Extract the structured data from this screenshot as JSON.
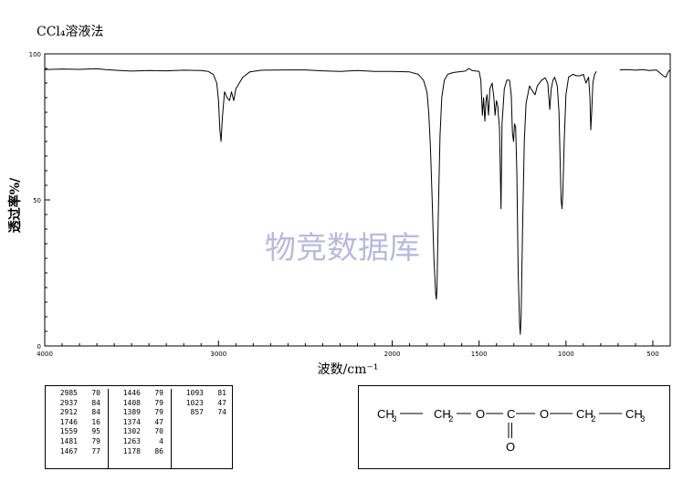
{
  "title": "CCl₄溶液法",
  "chart_data": {
    "type": "line",
    "xlabel": "波数/cm⁻¹",
    "ylabel": "透过率%/",
    "xlim": [
      4000,
      400
    ],
    "ylim": [
      0,
      100
    ],
    "x_tick_labels": [
      4000,
      3000,
      2000,
      1500,
      1000,
      500
    ],
    "y_tick_labels": [
      0,
      50,
      100
    ],
    "grid": false,
    "watermark": "物竞数据库",
    "series": [
      {
        "points": [
          [
            4000,
            94.6
          ],
          [
            3900,
            94.8
          ],
          [
            3800,
            94.7
          ],
          [
            3700,
            94.9
          ],
          [
            3650,
            94.6
          ],
          [
            3600,
            94.4
          ],
          [
            3500,
            94.1
          ],
          [
            3400,
            94.3
          ],
          [
            3300,
            94.2
          ],
          [
            3200,
            94.4
          ],
          [
            3100,
            94.3
          ],
          [
            3060,
            94.0
          ],
          [
            3030,
            93.0
          ],
          [
            3010,
            90.0
          ],
          [
            3000,
            84.0
          ],
          [
            2992,
            74.0
          ],
          [
            2985,
            70.0
          ],
          [
            2978,
            78.0
          ],
          [
            2965,
            87.0
          ],
          [
            2950,
            85.0
          ],
          [
            2937,
            84.0
          ],
          [
            2925,
            87.0
          ],
          [
            2912,
            84.0
          ],
          [
            2900,
            88.0
          ],
          [
            2880,
            90.0
          ],
          [
            2860,
            92.0
          ],
          [
            2820,
            93.8
          ],
          [
            2750,
            94.4
          ],
          [
            2600,
            94.5
          ],
          [
            2500,
            94.5
          ],
          [
            2400,
            94.2
          ],
          [
            2300,
            94.0
          ],
          [
            2200,
            94.3
          ],
          [
            2100,
            94.0
          ],
          [
            2000,
            94.0
          ],
          [
            1900,
            93.8
          ],
          [
            1850,
            93.0
          ],
          [
            1820,
            91.0
          ],
          [
            1800,
            87.0
          ],
          [
            1790,
            80.0
          ],
          [
            1780,
            68.0
          ],
          [
            1770,
            50.0
          ],
          [
            1760,
            30.0
          ],
          [
            1750,
            18.0
          ],
          [
            1746,
            16.0
          ],
          [
            1742,
            20.0
          ],
          [
            1735,
            45.0
          ],
          [
            1725,
            72.0
          ],
          [
            1715,
            85.0
          ],
          [
            1700,
            91.0
          ],
          [
            1680,
            93.0
          ],
          [
            1650,
            93.6
          ],
          [
            1600,
            94.0
          ],
          [
            1580,
            94.1
          ],
          [
            1559,
            95.0
          ],
          [
            1540,
            94.3
          ],
          [
            1500,
            94.0
          ],
          [
            1490,
            91.0
          ],
          [
            1481,
            79.0
          ],
          [
            1474,
            85.0
          ],
          [
            1467,
            77.0
          ],
          [
            1460,
            84.0
          ],
          [
            1455,
            86.0
          ],
          [
            1446,
            79.0
          ],
          [
            1438,
            88.0
          ],
          [
            1425,
            90.0
          ],
          [
            1415,
            85.0
          ],
          [
            1408,
            79.0
          ],
          [
            1400,
            84.0
          ],
          [
            1392,
            82.0
          ],
          [
            1389,
            79.0
          ],
          [
            1383,
            75.0
          ],
          [
            1374,
            47.0
          ],
          [
            1368,
            76.0
          ],
          [
            1355,
            88.0
          ],
          [
            1340,
            91.0
          ],
          [
            1325,
            91.0
          ],
          [
            1315,
            86.0
          ],
          [
            1308,
            73.0
          ],
          [
            1302,
            70.0
          ],
          [
            1296,
            76.0
          ],
          [
            1290,
            75.0
          ],
          [
            1283,
            60.0
          ],
          [
            1275,
            25.0
          ],
          [
            1267,
            8.0
          ],
          [
            1263,
            4.0
          ],
          [
            1258,
            10.0
          ],
          [
            1250,
            40.0
          ],
          [
            1240,
            70.0
          ],
          [
            1230,
            83.0
          ],
          [
            1210,
            89.0
          ],
          [
            1190,
            87.0
          ],
          [
            1178,
            86.0
          ],
          [
            1165,
            89.0
          ],
          [
            1140,
            91.0
          ],
          [
            1120,
            91.8
          ],
          [
            1105,
            90.0
          ],
          [
            1093,
            81.0
          ],
          [
            1085,
            88.0
          ],
          [
            1075,
            91.0
          ],
          [
            1065,
            92.0
          ],
          [
            1050,
            89.0
          ],
          [
            1040,
            80.0
          ],
          [
            1032,
            60.0
          ],
          [
            1028,
            50.0
          ],
          [
            1023,
            47.0
          ],
          [
            1018,
            52.0
          ],
          [
            1010,
            70.0
          ],
          [
            1000,
            86.0
          ],
          [
            985,
            92.0
          ],
          [
            960,
            93.0
          ],
          [
            940,
            92.5
          ],
          [
            920,
            92.5
          ],
          [
            900,
            93.0
          ],
          [
            885,
            90.0
          ],
          [
            870,
            92.0
          ],
          [
            862,
            85.0
          ],
          [
            857,
            74.0
          ],
          [
            852,
            80.0
          ],
          [
            845,
            90.0
          ],
          [
            835,
            93.0
          ],
          [
            825,
            94.0
          ]
        ]
      },
      {
        "points": [
          [
            690,
            94.5
          ],
          [
            650,
            94.6
          ],
          [
            600,
            94.4
          ],
          [
            560,
            94.6
          ],
          [
            520,
            94.3
          ],
          [
            480,
            94.5
          ],
          [
            460,
            93.5
          ],
          [
            440,
            92.5
          ],
          [
            425,
            92.0
          ],
          [
            410,
            94.0
          ],
          [
            400,
            94.5
          ]
        ]
      }
    ]
  },
  "peak_table": {
    "columns": [
      [
        [
          "2985",
          "70"
        ],
        [
          "2937",
          "84"
        ],
        [
          "2912",
          "84"
        ],
        [
          "1746",
          "16"
        ],
        [
          "1559",
          "95"
        ],
        [
          "1481",
          "79"
        ],
        [
          "1467",
          "77"
        ]
      ],
      [
        [
          "1446",
          "79"
        ],
        [
          "1408",
          "79"
        ],
        [
          "1389",
          "79"
        ],
        [
          "1374",
          "47"
        ],
        [
          "1302",
          "70"
        ],
        [
          "1263",
          "4"
        ],
        [
          "1178",
          "86"
        ]
      ],
      [
        [
          "1093",
          "81"
        ],
        [
          "1023",
          "47"
        ],
        [
          "857",
          "74"
        ]
      ]
    ]
  },
  "structure": {
    "main_groups": [
      "CH",
      "CH",
      "O",
      "C",
      "O",
      "CH",
      "CH"
    ],
    "subscripts": [
      "3",
      "2",
      "",
      "",
      "",
      "2",
      "3"
    ],
    "carbonyl_oxygen": "O"
  }
}
